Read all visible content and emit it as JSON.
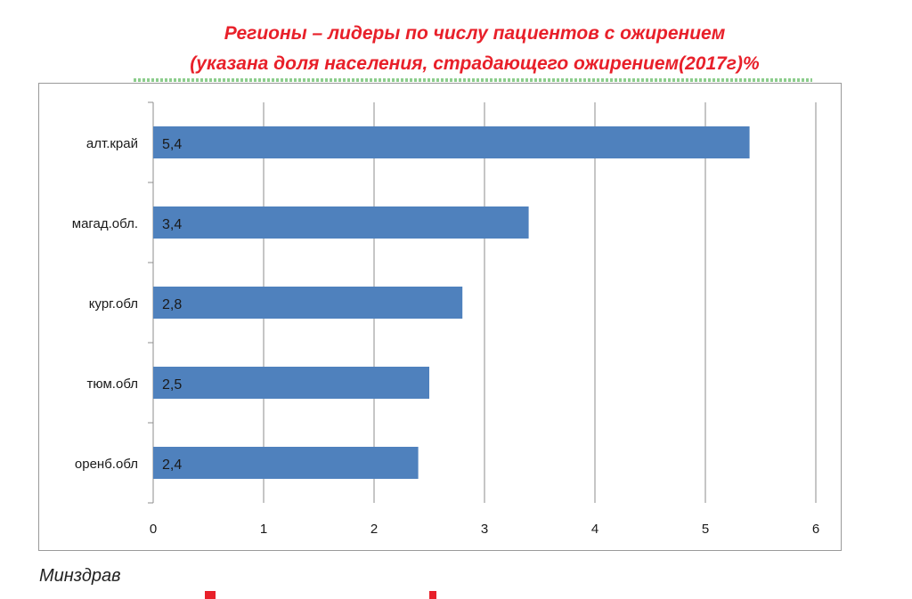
{
  "chart_data": {
    "type": "bar",
    "orientation": "horizontal",
    "title": "Регионы – лидеры по числу пациентов  с ожирением",
    "subtitle": "(указана  доля населения,  страдающего ожирением(2017г)%",
    "categories": [
      "алт.край",
      "магад.обл.",
      "кург.обл",
      "тюм.обл",
      "оренб.обл"
    ],
    "values": [
      5.4,
      3.4,
      2.8,
      2.5,
      2.4
    ],
    "data_labels": [
      "5,4",
      "3,4",
      "2,8",
      "2,5",
      "2,4"
    ],
    "x_ticks": [
      "0",
      "1",
      "2",
      "3",
      "4",
      "5",
      "6"
    ],
    "xlim": [
      0,
      6
    ],
    "grid": true,
    "bar_color": "#4f81bd",
    "title_color": "#e8202a"
  },
  "footer": {
    "source": "Минздрав"
  }
}
